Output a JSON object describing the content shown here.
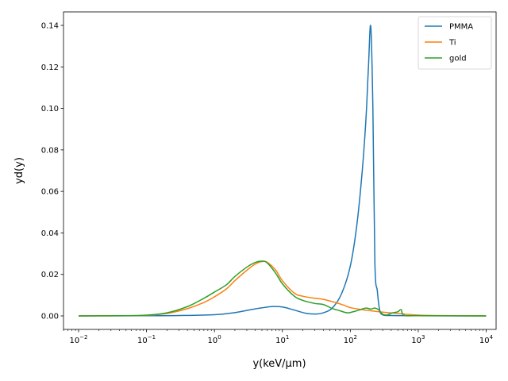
{
  "chart_data": {
    "type": "line",
    "xlabel": "y(keV/μm)",
    "ylabel": "yd(y)",
    "xscale": "log",
    "xlim": [
      0.006,
      14000
    ],
    "ylim": [
      -0.0065,
      0.1465
    ],
    "xticks": [
      {
        "value": 0.01,
        "base": "10",
        "exp": "−2"
      },
      {
        "value": 0.1,
        "base": "10",
        "exp": "−1"
      },
      {
        "value": 1,
        "base": "10",
        "exp": "0"
      },
      {
        "value": 10,
        "base": "10",
        "exp": "1"
      },
      {
        "value": 100,
        "base": "10",
        "exp": "2"
      },
      {
        "value": 1000,
        "base": "10",
        "exp": "3"
      },
      {
        "value": 10000,
        "base": "10",
        "exp": "4"
      }
    ],
    "yticks": [
      {
        "value": 0,
        "label": "0.00"
      },
      {
        "value": 0.02,
        "label": "0.02"
      },
      {
        "value": 0.04,
        "label": "0.04"
      },
      {
        "value": 0.06,
        "label": "0.06"
      },
      {
        "value": 0.08,
        "label": "0.08"
      },
      {
        "value": 0.1,
        "label": "0.10"
      },
      {
        "value": 0.12,
        "label": "0.12"
      },
      {
        "value": 0.14,
        "label": "0.14"
      }
    ],
    "legend_position": "top-right",
    "series": [
      {
        "name": "PMMA",
        "color": "#1f77b4",
        "points": [
          [
            0.01,
            0
          ],
          [
            0.1,
            0.0001
          ],
          [
            0.3,
            0.0002
          ],
          [
            1,
            0.0006
          ],
          [
            2,
            0.0016
          ],
          [
            4,
            0.0034
          ],
          [
            7,
            0.0045
          ],
          [
            10,
            0.0043
          ],
          [
            15,
            0.0028
          ],
          [
            22,
            0.0013
          ],
          [
            30,
            0.0009
          ],
          [
            40,
            0.0015
          ],
          [
            55,
            0.004
          ],
          [
            75,
            0.011
          ],
          [
            100,
            0.024
          ],
          [
            125,
            0.044
          ],
          [
            150,
            0.07
          ],
          [
            170,
            0.095
          ],
          [
            185,
            0.12
          ],
          [
            200,
            0.1395
          ],
          [
            215,
            0.1
          ],
          [
            230,
            0.026
          ],
          [
            250,
            0.012
          ],
          [
            270,
            0.003
          ],
          [
            300,
            0.0005
          ],
          [
            400,
            0.0002
          ],
          [
            1000,
            0.0001
          ],
          [
            10000,
            0
          ]
        ]
      },
      {
        "name": "Ti",
        "color": "#ff7f0e",
        "points": [
          [
            0.01,
            0
          ],
          [
            0.05,
            0.0001
          ],
          [
            0.1,
            0.0003
          ],
          [
            0.2,
            0.0012
          ],
          [
            0.4,
            0.0035
          ],
          [
            0.7,
            0.0065
          ],
          [
            1,
            0.0092
          ],
          [
            1.5,
            0.013
          ],
          [
            2,
            0.017
          ],
          [
            3,
            0.022
          ],
          [
            4,
            0.025
          ],
          [
            5,
            0.0262
          ],
          [
            6,
            0.0258
          ],
          [
            8,
            0.022
          ],
          [
            10,
            0.017
          ],
          [
            15,
            0.011
          ],
          [
            20,
            0.0095
          ],
          [
            30,
            0.0085
          ],
          [
            40,
            0.008
          ],
          [
            60,
            0.0065
          ],
          [
            80,
            0.0052
          ],
          [
            100,
            0.004
          ],
          [
            150,
            0.003
          ],
          [
            200,
            0.0025
          ],
          [
            300,
            0.0018
          ],
          [
            500,
            0.0012
          ],
          [
            1000,
            0.0004
          ],
          [
            3000,
            0.0001
          ],
          [
            10000,
            0
          ]
        ]
      },
      {
        "name": "gold",
        "color": "#2ca02c",
        "points": [
          [
            0.01,
            0
          ],
          [
            0.05,
            0.0001
          ],
          [
            0.1,
            0.0004
          ],
          [
            0.2,
            0.0015
          ],
          [
            0.4,
            0.0045
          ],
          [
            0.7,
            0.0085
          ],
          [
            1,
            0.0115
          ],
          [
            1.5,
            0.015
          ],
          [
            2,
            0.019
          ],
          [
            3,
            0.0235
          ],
          [
            4,
            0.0258
          ],
          [
            5,
            0.0264
          ],
          [
            6,
            0.0255
          ],
          [
            8,
            0.0205
          ],
          [
            10,
            0.0155
          ],
          [
            15,
            0.0095
          ],
          [
            20,
            0.0075
          ],
          [
            30,
            0.006
          ],
          [
            40,
            0.0055
          ],
          [
            55,
            0.0035
          ],
          [
            70,
            0.0025
          ],
          [
            90,
            0.0015
          ],
          [
            110,
            0.002
          ],
          [
            140,
            0.003
          ],
          [
            170,
            0.0038
          ],
          [
            200,
            0.0033
          ],
          [
            230,
            0.0038
          ],
          [
            260,
            0.003
          ],
          [
            300,
            0.0008
          ],
          [
            350,
            0.0005
          ],
          [
            420,
            0.0015
          ],
          [
            500,
            0.002
          ],
          [
            560,
            0.003
          ],
          [
            620,
            0.0003
          ],
          [
            1000,
            0.0001
          ],
          [
            10000,
            0
          ]
        ]
      }
    ]
  }
}
